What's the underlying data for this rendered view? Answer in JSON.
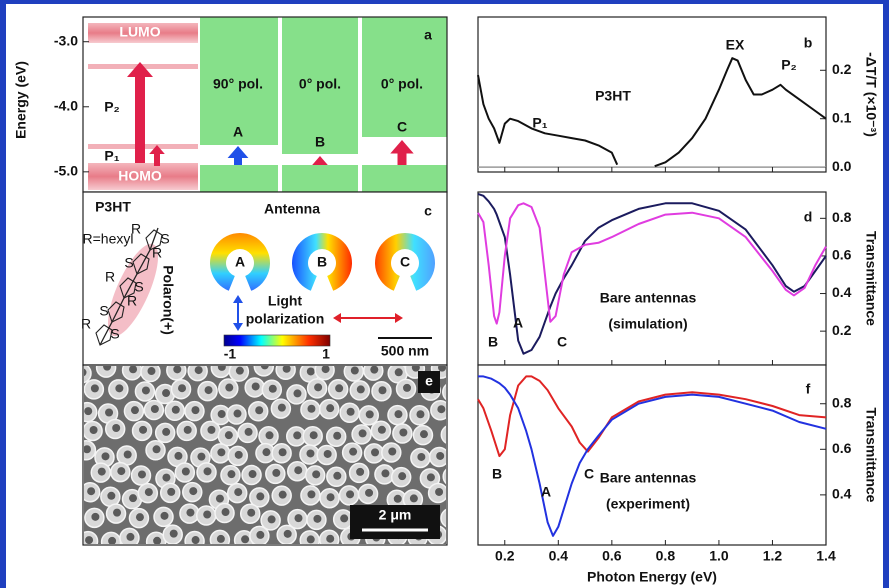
{
  "panel_a": {
    "label": "a",
    "ylabel": "Energy (eV)",
    "ylim": [
      -5.31,
      -2.62
    ],
    "yticks": [
      {
        "value": -3,
        "label": "-3.0"
      },
      {
        "value": -4,
        "label": "-4.0"
      },
      {
        "value": -5,
        "label": "-5.0"
      }
    ],
    "levels": [
      "LUMO",
      "HOMO"
    ],
    "transitions": [
      "P₂",
      "P₁"
    ],
    "columns": [
      {
        "pol": "90°  pol.",
        "name": "A"
      },
      {
        "pol": "0°  pol.",
        "name": "B"
      },
      {
        "pol": "0°  pol.",
        "name": "C"
      }
    ]
  },
  "panel_c": {
    "label": "c",
    "molecule_title": "P3HT",
    "substituent": "R=hexyl",
    "polaron": "Polaron(+)",
    "atom_r": "R",
    "atom_s": "S",
    "antenna_title": "Antenna",
    "antennas": [
      "A",
      "B",
      "C"
    ],
    "polarization": [
      "Light",
      "polarization"
    ],
    "colorbar_ticks": [
      -1,
      1
    ],
    "scale_bar": "500 nm"
  },
  "panel_e": {
    "label": "e",
    "scale_bar": "2 μm"
  },
  "chart_data": [
    {
      "type": "line",
      "panel_label": "b",
      "ylabel": "-ΔT/T (×10⁻³)",
      "annotations": [
        "P3HT",
        "EX",
        "P₁",
        "P₂"
      ],
      "xlim": [
        0.1,
        1.4
      ],
      "ylim": [
        -0.01,
        0.31
      ],
      "yticks": [
        {
          "value": 0,
          "label": "0.0"
        },
        0.1,
        0.2
      ],
      "x": [
        0.1,
        0.12,
        0.14,
        0.16,
        0.18,
        0.2,
        0.22,
        0.25,
        0.3,
        0.35,
        0.4,
        0.45,
        0.5,
        0.55,
        0.6,
        0.62,
        0.7,
        0.76,
        0.8,
        0.85,
        0.9,
        0.95,
        1.0,
        1.03,
        1.05,
        1.07,
        1.1,
        1.13,
        1.16,
        1.2,
        1.23,
        1.25,
        1.3,
        1.35,
        1.4
      ],
      "series": [
        {
          "color": "#111111",
          "values": [
            0.19,
            0.13,
            0.1,
            0.08,
            0.05,
            0.09,
            0.1,
            0.095,
            0.08,
            0.07,
            0.065,
            0.06,
            0.055,
            0.045,
            0.03,
            0.005,
            null,
            0.002,
            0.01,
            0.03,
            0.06,
            0.1,
            0.16,
            0.2,
            0.225,
            0.22,
            0.18,
            0.15,
            0.15,
            0.16,
            0.17,
            0.16,
            0.14,
            0.12,
            0.1
          ]
        }
      ]
    },
    {
      "type": "line",
      "panel_label": "d",
      "ylabel": "Transmittance",
      "annotations": [
        "Bare antennas",
        "(simulation)",
        "A",
        "B",
        "C"
      ],
      "xlim": [
        0.1,
        1.4
      ],
      "ylim": [
        0.02,
        0.94
      ],
      "yticks": [
        0.2,
        0.4,
        0.6,
        0.8
      ],
      "x": [
        0.1,
        0.12,
        0.14,
        0.16,
        0.17,
        0.18,
        0.2,
        0.22,
        0.25,
        0.27,
        0.3,
        0.33,
        0.35,
        0.37,
        0.39,
        0.42,
        0.45,
        0.5,
        0.55,
        0.6,
        0.7,
        0.8,
        0.9,
        1.0,
        1.1,
        1.2,
        1.25,
        1.28,
        1.32,
        1.36,
        1.4
      ],
      "series": [
        {
          "color": "#1b1b5e",
          "values": [
            0.93,
            0.92,
            0.89,
            0.85,
            0.82,
            0.78,
            0.7,
            0.5,
            0.15,
            0.08,
            0.1,
            0.17,
            0.25,
            0.33,
            0.4,
            0.48,
            0.55,
            0.68,
            0.75,
            0.79,
            0.85,
            0.88,
            0.88,
            0.84,
            0.74,
            0.55,
            0.44,
            0.41,
            0.44,
            0.52,
            0.6
          ]
        },
        {
          "color": "#e03ce0",
          "values": [
            0.83,
            0.78,
            0.55,
            0.28,
            0.24,
            0.3,
            0.6,
            0.8,
            0.87,
            0.88,
            0.86,
            0.75,
            0.5,
            0.25,
            0.28,
            0.5,
            0.62,
            0.66,
            0.67,
            0.7,
            0.77,
            0.82,
            0.83,
            0.8,
            0.7,
            0.52,
            0.42,
            0.39,
            0.43,
            0.55,
            0.65
          ]
        }
      ]
    },
    {
      "type": "line",
      "panel_label": "f",
      "ylabel": "Transmittance",
      "xlabel": "Photon Energy (eV)",
      "annotations": [
        "Bare antennas",
        "(experiment)",
        "A",
        "B",
        "C"
      ],
      "xlim": [
        0.1,
        1.4
      ],
      "ylim": [
        0.18,
        0.97
      ],
      "xticks": [
        0.2,
        0.4,
        0.6,
        0.8,
        {
          "value": 1,
          "label": "1.0"
        },
        1.2,
        1.4
      ],
      "yticks": [
        0.4,
        0.6,
        0.8
      ],
      "x": [
        0.1,
        0.12,
        0.15,
        0.18,
        0.2,
        0.22,
        0.25,
        0.28,
        0.3,
        0.33,
        0.36,
        0.38,
        0.4,
        0.45,
        0.48,
        0.51,
        0.55,
        0.6,
        0.7,
        0.8,
        0.9,
        1.0,
        1.1,
        1.2,
        1.3,
        1.4
      ],
      "series": [
        {
          "color": "#e02424",
          "values": [
            0.82,
            0.78,
            0.68,
            0.57,
            0.6,
            0.75,
            0.88,
            0.92,
            0.92,
            0.9,
            0.86,
            0.82,
            0.78,
            0.7,
            0.63,
            0.59,
            0.65,
            0.74,
            0.81,
            0.84,
            0.85,
            0.84,
            0.82,
            0.79,
            0.75,
            0.74
          ]
        },
        {
          "color": "#2232e0",
          "values": [
            0.92,
            0.92,
            0.91,
            0.89,
            0.87,
            0.84,
            0.78,
            0.68,
            0.6,
            0.45,
            0.28,
            0.22,
            0.26,
            0.45,
            0.54,
            0.6,
            0.66,
            0.73,
            0.8,
            0.83,
            0.84,
            0.83,
            0.8,
            0.77,
            0.72,
            0.69
          ]
        }
      ]
    }
  ]
}
